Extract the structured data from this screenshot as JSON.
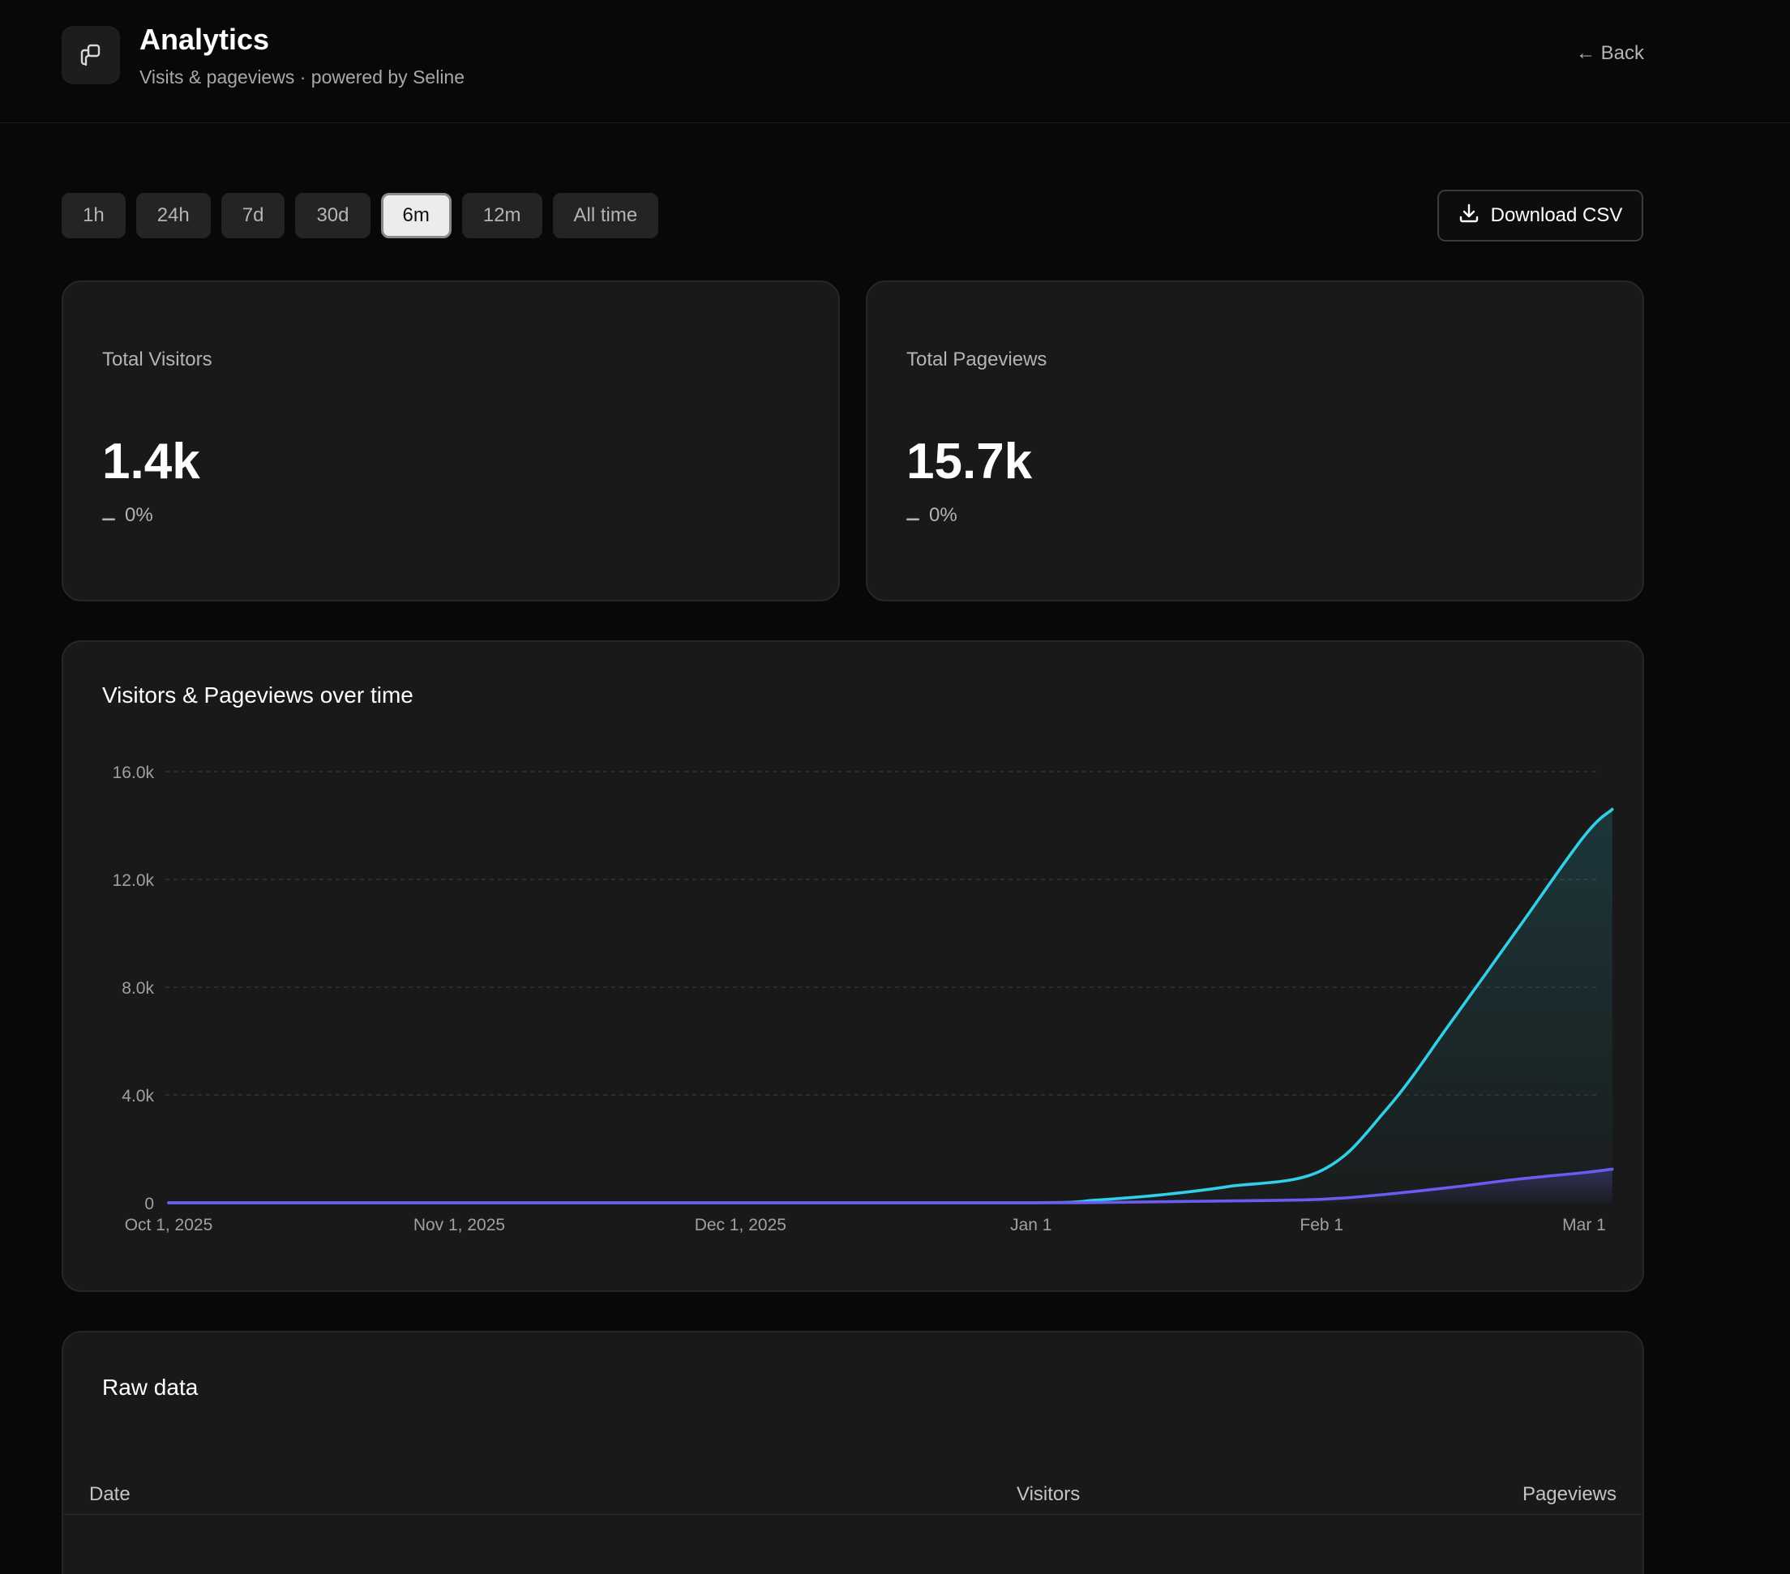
{
  "header": {
    "title": "Analytics",
    "subtitle": "Visits & pageviews · powered by Seline",
    "back_label": "← Back"
  },
  "ranges": [
    "1h",
    "24h",
    "7d",
    "30d",
    "6m",
    "12m",
    "All time"
  ],
  "active_range": "6m",
  "download_label": "Download CSV",
  "stats": {
    "visitors": {
      "label": "Total Visitors",
      "value": "1.4k",
      "delta": "0%"
    },
    "pageviews": {
      "label": "Total Pageviews",
      "value": "15.7k",
      "delta": "0%"
    }
  },
  "colors": {
    "pageviews": "#2fd0e8",
    "visitors": "#6a5cf0",
    "background": "#080808",
    "card": "#191919"
  },
  "chart_data": {
    "type": "area",
    "title": "Visitors & Pageviews over time",
    "x_ticks": [
      "Oct 1, 2025",
      "Nov 1, 2025",
      "Dec 1, 2025",
      "Jan 1",
      "Feb 1",
      "Mar 1"
    ],
    "y_ticks": [
      "0",
      "4.0k",
      "8.0k",
      "12.0k",
      "16.0k"
    ],
    "ylim": [
      0,
      16000
    ],
    "grid": true,
    "x": [
      "2025-10-01",
      "2025-11-01",
      "2025-12-01",
      "2026-01-01",
      "2026-01-08",
      "2026-01-15",
      "2026-01-22",
      "2026-02-01",
      "2026-02-08",
      "2026-02-15",
      "2026-02-22",
      "2026-03-01",
      "2026-03-04"
    ],
    "series": [
      {
        "key": "pageviews",
        "values": [
          0,
          0,
          0,
          0,
          100,
          300,
          600,
          1200,
          3500,
          6800,
          10200,
          13600,
          14600
        ]
      },
      {
        "key": "visitors",
        "values": [
          0,
          0,
          0,
          0,
          10,
          40,
          70,
          130,
          320,
          580,
          880,
          1120,
          1250
        ]
      }
    ]
  },
  "raw_data": {
    "title": "Raw data",
    "columns": [
      "Date",
      "Visitors",
      "Pageviews"
    ]
  }
}
